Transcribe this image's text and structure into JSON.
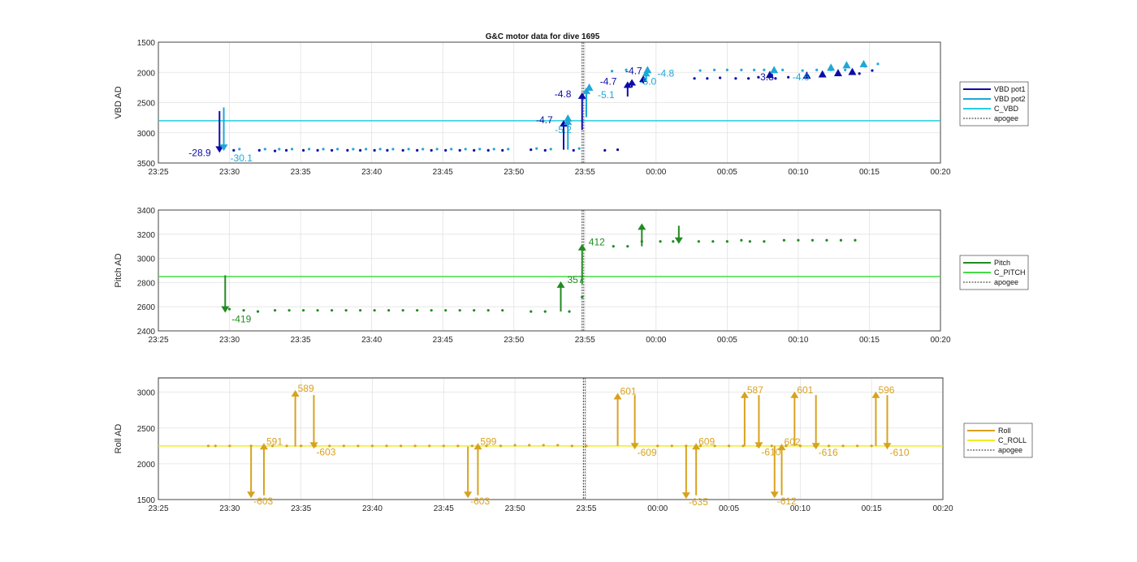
{
  "figure_title": "G&C motor data for dive 1695",
  "colors": {
    "pot1": "#0c0ca8",
    "pot2": "#1ea8d8",
    "c_vbd": "#22cfe0",
    "pitch": "#228b22",
    "c_pitch": "#44dd44",
    "roll": "#d8a21e",
    "c_roll": "#eeee22",
    "apogee": "#555555"
  },
  "chart_data": [
    {
      "type": "scatter",
      "ylabel": "VBD AD",
      "ylim": [
        1500,
        3500
      ],
      "y_reversed": true,
      "yticks": [
        "1500",
        "2000",
        "2500",
        "3000",
        "3500"
      ],
      "xlim": [
        0,
        55
      ],
      "xticks": [
        "23:25",
        "23:30",
        "23:35",
        "23:40",
        "23:45",
        "23:50",
        "23:55",
        "00:00",
        "00:05",
        "00:10",
        "00:15",
        "00:20"
      ],
      "grid": true,
      "legend_position": "right",
      "legend": [
        "VBD pot1",
        "VBD pot2",
        "C_VBD",
        "apogee"
      ],
      "title": "G&C motor data for dive 1695",
      "reference_line": {
        "name": "C_VBD",
        "y": 2800
      },
      "apogee_x": 29.8,
      "series": [
        {
          "name": "VBD pot1",
          "x": [
            5.3,
            7.1,
            8.2,
            9.0,
            10.2,
            11.2,
            12.2,
            13.3,
            14.2,
            15.2,
            16.1,
            17.2,
            18.2,
            19.2,
            20.2,
            21.2,
            22.2,
            23.2,
            24.2,
            26.2,
            27.2,
            29.2,
            31.4,
            32.3,
            37.7,
            38.6,
            39.5,
            40.6,
            41.5,
            42.2,
            43.4,
            44.3,
            49.3,
            50.2
          ],
          "y": [
            3290,
            3290,
            3300,
            3290,
            3290,
            3290,
            3290,
            3290,
            3290,
            3290,
            3290,
            3290,
            3290,
            3290,
            3290,
            3290,
            3290,
            3290,
            3290,
            3280,
            3290,
            3290,
            3290,
            3280,
            2100,
            2100,
            2090,
            2100,
            2100,
            2080,
            2100,
            2080,
            2020,
            1970
          ]
        },
        {
          "name": "VBD pot2",
          "x": [
            5.7,
            7.5,
            8.5,
            9.4,
            10.6,
            11.6,
            12.6,
            13.7,
            14.6,
            15.6,
            16.5,
            17.6,
            18.6,
            19.6,
            20.6,
            21.6,
            22.6,
            23.6,
            24.6,
            26.6,
            27.6,
            29.6,
            31.9,
            32.9,
            38.1,
            39.1,
            40.0,
            41.0,
            41.9,
            42.6,
            43.9,
            45.3,
            46.3,
            47.3,
            48.3,
            49.7,
            50.6
          ],
          "y": [
            3270,
            3270,
            3270,
            3270,
            3270,
            3270,
            3270,
            3270,
            3270,
            3270,
            3270,
            3270,
            3270,
            3270,
            3270,
            3270,
            3270,
            3270,
            3270,
            3260,
            3270,
            3260,
            1980,
            1960,
            1970,
            1960,
            1960,
            1960,
            1960,
            1960,
            1960,
            1970,
            1960,
            1960,
            1960,
            1900,
            1860
          ]
        },
        {
          "name": "VBD pot1 move",
          "x": [
            4.3,
            28.5,
            29.8,
            33.1,
            33.9,
            43.2,
            47.0,
            48.0,
            48.8,
            49.9
          ],
          "arrows": [
            [
              2640,
              3330,
              "-28.9"
            ],
            [
              2900,
              2790,
              "-4.7"
            ],
            [
              2750,
              2310,
              "-4.8"
            ],
            [
              2350,
              2110,
              "-4.7"
            ],
            [
              2250,
              2040,
              "-4.7"
            ],
            [
              null,
              null,
              "-3.8"
            ],
            [
              null,
              null,
              "-4.6"
            ],
            [
              null,
              null,
              ""
            ],
            [
              null,
              null,
              ""
            ],
            [
              null,
              null,
              ""
            ]
          ]
        },
        {
          "name": "VBD pot2 move",
          "x": [
            4.6,
            28.8,
            30.0,
            33.5,
            34.2
          ],
          "arrows": [
            [
              2580,
              3300,
              "-30.1"
            ],
            [
              3000,
              2750,
              "-5.2"
            ],
            [
              2720,
              2250,
              "-5.1"
            ],
            [
              null,
              null,
              "-5.0"
            ],
            [
              null,
              null,
              "-4.8"
            ]
          ]
        }
      ]
    },
    {
      "type": "scatter",
      "ylabel": "Pitch AD",
      "ylim": [
        2400,
        3400
      ],
      "yticks": [
        "2400",
        "2600",
        "2800",
        "3000",
        "3200",
        "3400"
      ],
      "xlim": [
        0,
        55
      ],
      "xticks": [
        "23:25",
        "23:30",
        "23:35",
        "23:40",
        "23:45",
        "23:50",
        "23:55",
        "00:00",
        "00:05",
        "00:10",
        "00:15",
        "00:20"
      ],
      "grid": true,
      "legend_position": "right",
      "legend": [
        "Pitch",
        "C_PITCH",
        "apogee"
      ],
      "reference_line": {
        "name": "C_PITCH",
        "y": 2850
      },
      "apogee_x": 29.8,
      "series": [
        {
          "name": "Pitch",
          "x": [
            5.0,
            6.0,
            7.0,
            8.2,
            9.2,
            10.2,
            11.2,
            12.2,
            13.2,
            14.2,
            15.2,
            16.2,
            17.2,
            18.2,
            19.2,
            20.2,
            21.2,
            22.2,
            23.2,
            24.2,
            26.2,
            27.2,
            28.9,
            29.8,
            32.0,
            33.0,
            34.0,
            35.3,
            36.2,
            38.0,
            39.0,
            40.0,
            41.0,
            41.6,
            42.6,
            44.0,
            45.0,
            46.0,
            47.0,
            48.0,
            49.0
          ],
          "y": [
            2580,
            2570,
            2560,
            2570,
            2570,
            2570,
            2570,
            2570,
            2570,
            2570,
            2570,
            2570,
            2570,
            2570,
            2570,
            2570,
            2570,
            2570,
            2570,
            2570,
            2560,
            2560,
            2560,
            2680,
            3100,
            3100,
            3140,
            3140,
            3140,
            3140,
            3140,
            3140,
            3150,
            3140,
            3140,
            3150,
            3150,
            3150,
            3150,
            3150,
            3150
          ],
          "arrows": [
            {
              "x": 4.7,
              "from": 2860,
              "to": 2550,
              "label": "-419"
            },
            {
              "x": 28.3,
              "from": 2560,
              "to": 2810,
              "label": "357"
            },
            {
              "x": 29.8,
              "from": 2790,
              "to": 3120,
              "label": "412"
            },
            {
              "x": 34.0,
              "from": 3100,
              "to": 3290,
              "label": ""
            },
            {
              "x": 36.6,
              "from": 3270,
              "to": 3120,
              "label": ""
            }
          ]
        }
      ]
    },
    {
      "type": "scatter",
      "ylabel": "Roll AD",
      "ylim": [
        1500,
        3200
      ],
      "yticks": [
        "1500",
        "2000",
        "2500",
        "3000"
      ],
      "xlim": [
        0,
        55
      ],
      "xticks": [
        "23:25",
        "23:30",
        "23:35",
        "23:40",
        "23:45",
        "23:50",
        "23:55",
        "00:00",
        "00:05",
        "00:10",
        "00:15",
        "00:20"
      ],
      "grid": true,
      "legend_position": "right",
      "legend": [
        "Roll",
        "C_ROLL",
        "apogee"
      ],
      "reference_line": {
        "name": "C_ROLL",
        "y": 2250
      },
      "apogee_x": 29.8,
      "series": [
        {
          "name": "Roll",
          "x": [
            3.5,
            4.0,
            5.0,
            6.5,
            8.0,
            9.0,
            10.0,
            11.0,
            12.0,
            13.0,
            14.0,
            15.0,
            16.0,
            17.0,
            18.0,
            19.0,
            20.0,
            21.0,
            22.0,
            23.0,
            24.0,
            25.0,
            26.0,
            27.0,
            28.0,
            29.0,
            30.0,
            35.0,
            36.0,
            37.0,
            38.0,
            39.0,
            40.0,
            41.0,
            42.0,
            43.0,
            44.0,
            45.0,
            46.0,
            47.0,
            48.0,
            49.0,
            50.0
          ],
          "y": [
            2250,
            2250,
            2250,
            2250,
            2250,
            2250,
            2250,
            2250,
            2250,
            2250,
            2250,
            2250,
            2250,
            2250,
            2250,
            2250,
            2250,
            2250,
            2250,
            2250,
            2250,
            2260,
            2260,
            2260,
            2260,
            2250,
            2250,
            2250,
            2250,
            2250,
            2250,
            2250,
            2250,
            2250,
            2250,
            2250,
            2250,
            2250,
            2250,
            2250,
            2250,
            2250,
            2250
          ],
          "arrows": [
            {
              "x": 6.5,
              "from": 2240,
              "to": 1520,
              "label": "-603"
            },
            {
              "x": 7.4,
              "from": 1560,
              "to": 2290,
              "label": "591"
            },
            {
              "x": 9.6,
              "from": 2240,
              "to": 3030,
              "label": "589"
            },
            {
              "x": 10.9,
              "from": 2960,
              "to": 2210,
              "label": "-603"
            },
            {
              "x": 21.7,
              "from": 2240,
              "to": 1520,
              "label": "-603"
            },
            {
              "x": 22.4,
              "from": 1560,
              "to": 2290,
              "label": "599"
            },
            {
              "x": 32.2,
              "from": 2250,
              "to": 2990,
              "label": "601"
            },
            {
              "x": 33.4,
              "from": 2960,
              "to": 2200,
              "label": "-609"
            },
            {
              "x": 37.0,
              "from": 2240,
              "to": 1510,
              "label": "-635"
            },
            {
              "x": 37.7,
              "from": 1560,
              "to": 2290,
              "label": "609"
            },
            {
              "x": 41.1,
              "from": 2250,
              "to": 3010,
              "label": "587"
            },
            {
              "x": 42.1,
              "from": 2960,
              "to": 2210,
              "label": "-610"
            },
            {
              "x": 43.2,
              "from": 2250,
              "to": 1520,
              "label": "-612"
            },
            {
              "x": 43.7,
              "from": 1560,
              "to": 2280,
              "label": "602"
            },
            {
              "x": 44.6,
              "from": 2250,
              "to": 3010,
              "label": "601"
            },
            {
              "x": 46.1,
              "from": 2960,
              "to": 2200,
              "label": "-616"
            },
            {
              "x": 50.3,
              "from": 2250,
              "to": 3010,
              "label": "596"
            },
            {
              "x": 51.1,
              "from": 2960,
              "to": 2200,
              "label": "-610"
            }
          ]
        }
      ]
    }
  ]
}
